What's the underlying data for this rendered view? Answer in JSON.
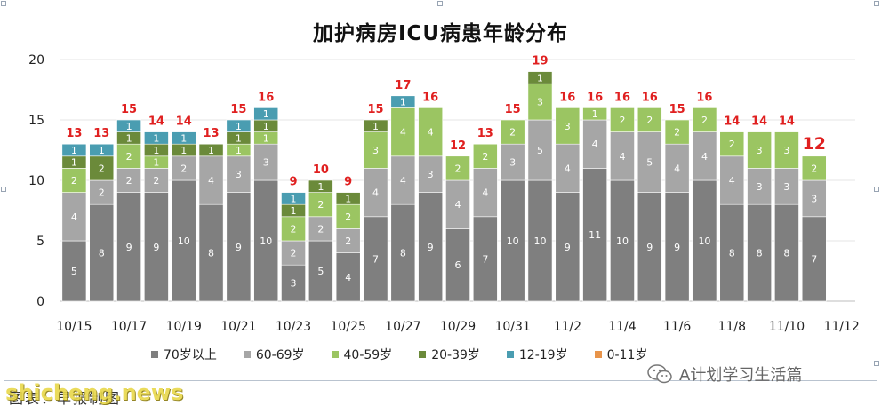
{
  "chart_data": {
    "type": "bar",
    "stacked": true,
    "title": "加护病房ICU病患年龄分布",
    "ylim": [
      0,
      20
    ],
    "yticks": [
      0,
      5,
      10,
      15,
      20
    ],
    "grid": true,
    "legend_position": "bottom",
    "categories": [
      "10/15",
      "10/16",
      "10/17",
      "10/18",
      "10/19",
      "10/20",
      "10/21",
      "10/22",
      "10/23",
      "10/24",
      "10/25",
      "10/26",
      "10/27",
      "10/28",
      "10/29",
      "10/30",
      "10/31",
      "11/1",
      "11/2",
      "11/3",
      "11/4",
      "11/5",
      "11/6",
      "11/7",
      "11/8",
      "11/9",
      "11/10",
      "11/11",
      "11/12"
    ],
    "x_tick_labels": [
      "10/15",
      "10/17",
      "10/19",
      "10/21",
      "10/23",
      "10/25",
      "10/27",
      "10/29",
      "10/31",
      "11/2",
      "11/4",
      "11/6",
      "11/8",
      "11/10",
      "11/12"
    ],
    "series": [
      {
        "name": "70岁以上",
        "color": "#7f7f7f",
        "values": [
          5,
          8,
          9,
          9,
          10,
          8,
          9,
          10,
          3,
          5,
          4,
          7,
          8,
          9,
          6,
          7,
          10,
          10,
          9,
          11,
          10,
          9,
          9,
          10,
          8,
          8,
          8,
          7,
          0
        ]
      },
      {
        "name": "60-69岁",
        "color": "#a6a6a6",
        "values": [
          4,
          2,
          2,
          2,
          2,
          4,
          3,
          3,
          2,
          2,
          2,
          4,
          4,
          3,
          4,
          4,
          3,
          5,
          4,
          4,
          4,
          5,
          4,
          4,
          4,
          3,
          3,
          3,
          0
        ]
      },
      {
        "name": "40-59岁",
        "color": "#9bc562",
        "values": [
          2,
          0,
          2,
          1,
          0,
          0,
          1,
          1,
          2,
          2,
          2,
          3,
          4,
          4,
          2,
          2,
          2,
          3,
          3,
          1,
          2,
          2,
          2,
          2,
          2,
          3,
          3,
          2,
          0
        ]
      },
      {
        "name": "20-39岁",
        "color": "#6b8a3a",
        "values": [
          1,
          2,
          1,
          1,
          1,
          1,
          1,
          1,
          1,
          1,
          1,
          1,
          0,
          0,
          0,
          0,
          0,
          1,
          0,
          0,
          0,
          0,
          0,
          0,
          0,
          0,
          0,
          0,
          0
        ]
      },
      {
        "name": "12-19岁",
        "color": "#4a9db1",
        "values": [
          1,
          1,
          1,
          1,
          1,
          0,
          1,
          1,
          1,
          0,
          0,
          0,
          1,
          0,
          0,
          0,
          0,
          0,
          0,
          0,
          0,
          0,
          0,
          0,
          0,
          0,
          0,
          0,
          0
        ]
      },
      {
        "name": "0-11岁",
        "color": "#e8944a",
        "values": [
          0,
          0,
          0,
          0,
          0,
          0,
          0,
          0,
          0,
          0,
          0,
          0,
          0,
          0,
          0,
          0,
          0,
          0,
          0,
          0,
          0,
          0,
          0,
          0,
          0,
          0,
          0,
          0,
          0
        ]
      }
    ],
    "totals": [
      "13",
      "13",
      "15",
      "14",
      "14",
      "13",
      "15",
      "16",
      "9",
      "10",
      "9",
      "15",
      "17",
      "16",
      "12",
      "13",
      "15",
      "19",
      "16",
      "16",
      "16",
      "16",
      "15",
      "16",
      "14",
      "14",
      "14",
      "12",
      ""
    ],
    "total_color": "#e02020"
  },
  "source_label": "图表：早报制图",
  "watermark_site": "shicheng.news",
  "watermark_account": "A计划学习生活篇",
  "watermark_icon": "wechat-icon"
}
